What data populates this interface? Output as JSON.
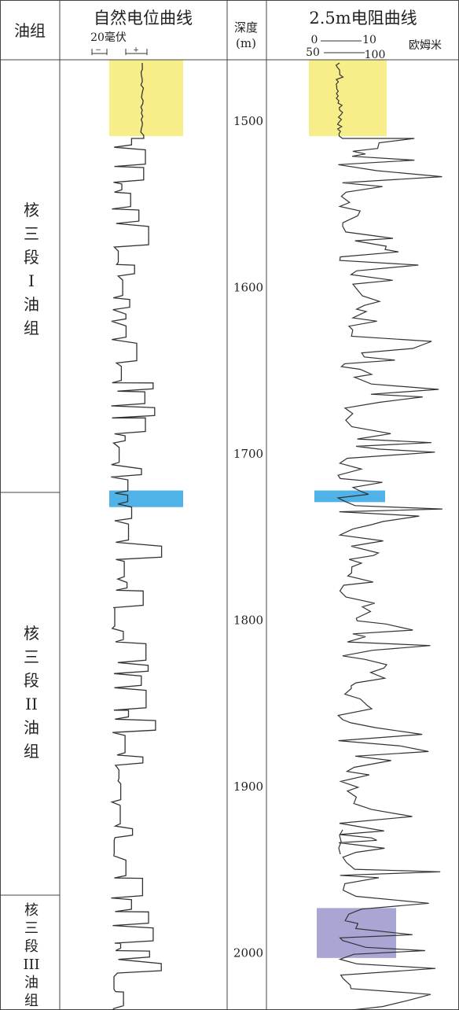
{
  "header": {
    "group_col": "油组",
    "sp_title": "自然电位曲线",
    "sp_scale": "20毫伏",
    "sp_minus": "−",
    "sp_plus": "+",
    "depth_title": "深度",
    "depth_unit": "(m)",
    "res_title": "2.5m电阻曲线",
    "res_scale_row1_left": "0",
    "res_scale_row1_right": "10",
    "res_scale_row2_left": "50",
    "res_scale_row2_right": "100",
    "res_unit": "欧姆米"
  },
  "groups": [
    {
      "chars": [
        "核",
        "三",
        "段",
        "I",
        "油",
        "组"
      ]
    },
    {
      "chars": [
        "核",
        "三",
        "段",
        "II",
        "油",
        "组"
      ]
    },
    {
      "chars": [
        "核",
        "三",
        "段",
        "III",
        "油",
        "组"
      ]
    }
  ],
  "depth_ticks": [
    {
      "label": "1500",
      "value": 1500
    },
    {
      "label": "1600",
      "value": 1600
    },
    {
      "label": "1700",
      "value": 1700
    },
    {
      "label": "1800",
      "value": 1800
    },
    {
      "label": "1900",
      "value": 1900
    },
    {
      "label": "2000",
      "value": 2000
    }
  ],
  "highlight_colors": {
    "yellow": "#f7ee8a",
    "blue": "#4fb3e8",
    "purple": "#a9a6d4",
    "line": "#444444",
    "curve": "#333333"
  },
  "highlights": [
    {
      "name": "sp-yellow-zone",
      "track": "sp",
      "color": "yellow",
      "top_depth": 1463,
      "bottom_depth": 1509
    },
    {
      "name": "sp-blue-zone",
      "track": "sp",
      "color": "blue",
      "top_depth": 1722,
      "bottom_depth": 1732
    },
    {
      "name": "res-yellow-zone",
      "track": "res",
      "color": "yellow",
      "top_depth": 1463,
      "bottom_depth": 1509
    },
    {
      "name": "res-blue-zone",
      "track": "res",
      "color": "blue",
      "top_depth": 1722,
      "bottom_depth": 1729
    },
    {
      "name": "res-purple-zone",
      "track": "res",
      "color": "purple",
      "top_depth": 1973,
      "bottom_depth": 2003
    }
  ]
}
